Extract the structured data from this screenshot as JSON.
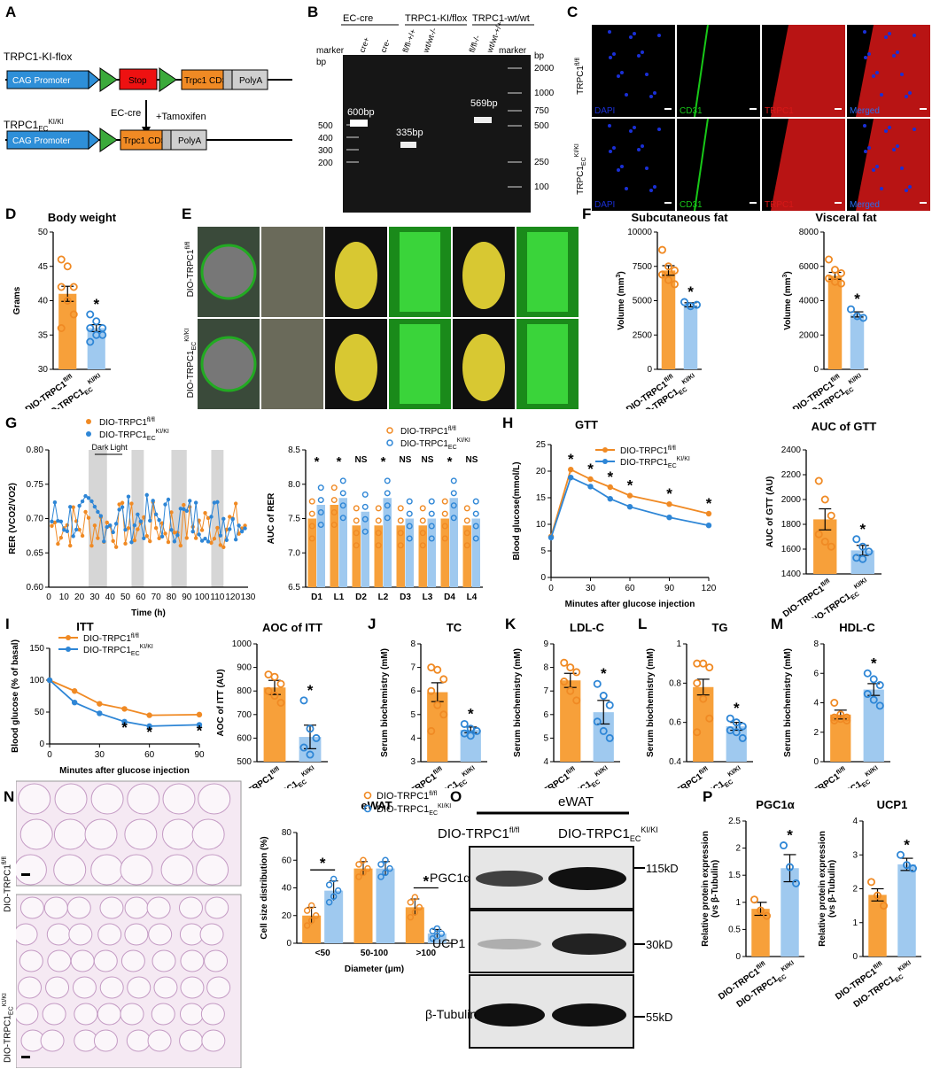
{
  "panels": {
    "A": {
      "label": "A",
      "construct1": "TRPC1-KI-flox",
      "construct2": "TRPC1EC",
      "construct2_sup": "KI/KI",
      "arrow1": "EC-cre",
      "arrow2": "+Tamoxifen",
      "elements1": [
        "CAG Promoter",
        "loxP",
        "Stop",
        "loxP",
        "Trpc1 CDS",
        "Myc",
        "PolyA"
      ],
      "elements2": [
        "CAG Promoter",
        "loxP",
        "Trpc1 CDS",
        "Myc",
        "PolyA"
      ]
    },
    "B": {
      "label": "B",
      "groups": [
        "EC-cre",
        "TRPC1-KI/flox",
        "TRPC1-wt/wt"
      ],
      "lanes": [
        "marker",
        "cre+",
        "cre-",
        "fl/fl-+/+",
        "wt/wt-/-",
        "fl/fl-/-",
        "wt/wt-+/+",
        "marker"
      ],
      "bp_left": [
        "bp",
        "500",
        "400",
        "300",
        "200"
      ],
      "bp_right": [
        "bp",
        "2000",
        "1000",
        "750",
        "500",
        "250",
        "100"
      ],
      "bands": [
        "600bp",
        "335bp",
        "569bp"
      ]
    },
    "C": {
      "label": "C",
      "rows": [
        "TRPC1fl/fl",
        "TRPC1EC KI/KI"
      ],
      "channels": [
        "DAPI",
        "CD31",
        "TRPC1",
        "Merged"
      ]
    },
    "D": {
      "label": "D",
      "title": "Body weight",
      "ylabel": "Grams"
    },
    "E": {
      "label": "E",
      "rows": [
        "DIO-TRPC1fl/fl",
        "DIO-TRPC1EC KI/KI"
      ]
    },
    "F": {
      "label": "F"
    },
    "G": {
      "label": "G",
      "ylabel": "RER (VCO2/VO2)",
      "xlabel": "Time (h)",
      "dark": "Dark",
      "light": "Light",
      "auc_ylabel": "AUC of RER"
    },
    "H": {
      "label": "H",
      "title": "GTT",
      "ylabel": "Blood glucose(mmol/L)",
      "xlabel": "Minutes after glucose injection",
      "auc_title": "AUC of GTT",
      "auc_ylabel": "AUC of GTT (AU)"
    },
    "I": {
      "label": "I",
      "title": "ITT",
      "ylabel": "Blood glucose (% of basal)",
      "xlabel": "Minutes after glucose injection",
      "auc_title": "AOC of ITT",
      "auc_ylabel": "AOC of ITT (AU)"
    },
    "J": {
      "label": "J",
      "title": "TC"
    },
    "K": {
      "label": "K",
      "title": "LDL-C"
    },
    "L": {
      "label": "L",
      "title": "TG"
    },
    "M": {
      "label": "M",
      "title": "HDL-C"
    },
    "N": {
      "label": "N",
      "rows": [
        "DIO-TRPC1fl/fl",
        "DIO-TRPC1EC KI/KI"
      ],
      "chart_title": "eWAT"
    },
    "O": {
      "label": "O",
      "header": "eWAT",
      "col1": "DIO-TRPC1fl/fl",
      "col2": "DIO-TRPC1EC KI/KI",
      "rows": [
        "PGC1α",
        "UCP1",
        "β-Tubulin"
      ],
      "sizes": [
        "115kD",
        "30kD",
        "55kD"
      ]
    },
    "P": {
      "label": "P",
      "ylabel": "Relative protein expression (vs β-Tubulin)"
    }
  },
  "groups": {
    "wt": "DIO-TRPC1",
    "wt_sup": "fl/fl",
    "ki": "DIO-TRPC1",
    "ki_sub": "EC",
    "ki_sup": "KI/KI"
  },
  "colors": {
    "wt": "#F7A03A",
    "ki": "#9FC9EF",
    "wt_dot": "#F08A24",
    "ki_dot": "#2E86D6"
  },
  "chart_data": [
    {
      "id": "D",
      "type": "bar",
      "title": "Body weight",
      "ylabel": "Grams",
      "ylim": [
        30,
        50
      ],
      "yticks": [
        30,
        35,
        40,
        45,
        50
      ],
      "values": [
        41.0,
        36.0
      ],
      "err": [
        1.1,
        0.5
      ],
      "sig": [
        1
      ],
      "points": [
        [
          46,
          45,
          42,
          42,
          40,
          38,
          36
        ],
        [
          38,
          37,
          36,
          36,
          35,
          35,
          34
        ]
      ]
    },
    {
      "id": "F1",
      "type": "bar",
      "title": "Subcutaneous fat",
      "ylabel": "Volume (mm3)",
      "ylim": [
        0,
        10000
      ],
      "yticks": [
        0,
        2500,
        5000,
        7500,
        10000
      ],
      "values": [
        7200,
        4700
      ],
      "err": [
        350,
        150
      ],
      "sig": [
        1
      ],
      "points": [
        [
          8700,
          7500,
          7200,
          6900,
          6500,
          6200
        ],
        [
          4900,
          4600,
          4700
        ]
      ]
    },
    {
      "id": "F2",
      "type": "bar",
      "title": "Visceral fat",
      "ylabel": "Volume (mm3)",
      "ylim": [
        0,
        8000
      ],
      "yticks": [
        0,
        2000,
        4000,
        6000,
        8000
      ],
      "values": [
        5450,
        3200
      ],
      "err": [
        200,
        150
      ],
      "sig": [
        1
      ],
      "points": [
        [
          6400,
          5800,
          5600,
          5300,
          5100,
          5000
        ],
        [
          3500,
          3100,
          3000
        ]
      ]
    },
    {
      "id": "Gb",
      "type": "bar",
      "ylabel": "AUC of RER",
      "ylim": [
        6.5,
        8.5
      ],
      "yticks": [
        6.5,
        7.0,
        7.5,
        8.0,
        8.5
      ],
      "categories": [
        "D1",
        "L1",
        "D2",
        "L2",
        "D3",
        "L3",
        "D4",
        "L4"
      ],
      "series": [
        {
          "name": "DIO-TRPC1fl/fl",
          "values": [
            7.5,
            7.7,
            7.4,
            7.4,
            7.4,
            7.4,
            7.5,
            7.4
          ]
        },
        {
          "name": "DIO-TRPC1EC KI/KI",
          "values": [
            7.7,
            7.8,
            7.6,
            7.8,
            7.5,
            7.5,
            7.8,
            7.5
          ]
        }
      ],
      "marks": [
        "*",
        "*",
        "NS",
        "*",
        "NS",
        "NS",
        "*",
        "NS"
      ]
    },
    {
      "id": "H",
      "type": "line",
      "title": "GTT",
      "ylabel": "Blood glucose(mmol/L)",
      "xlabel": "Minutes after glucose injection",
      "x": [
        0,
        15,
        30,
        45,
        60,
        90,
        120
      ],
      "xlim": [
        0,
        120
      ],
      "ylim": [
        0,
        25
      ],
      "yticks": [
        0,
        5,
        10,
        15,
        20,
        25
      ],
      "series": [
        {
          "name": "DIO-TRPC1fl/fl",
          "values": [
            7.7,
            20.3,
            18.5,
            17.0,
            15.4,
            13.8,
            12.0
          ]
        },
        {
          "name": "DIO-TRPC1EC KI/KI",
          "values": [
            7.5,
            18.8,
            17.1,
            14.8,
            13.3,
            11.3,
            9.8
          ]
        }
      ],
      "sig_x": [
        15,
        30,
        45,
        60,
        90,
        120
      ]
    },
    {
      "id": "Hb",
      "type": "bar",
      "title": "AUC of GTT",
      "ylabel": "AUC of GTT (AU)",
      "ylim": [
        1400,
        2400
      ],
      "yticks": [
        1400,
        1600,
        1800,
        2000,
        2200,
        2400
      ],
      "values": [
        1840,
        1590
      ],
      "err": [
        85,
        40
      ],
      "sig": [
        1
      ],
      "points": [
        [
          2150,
          2000,
          1870,
          1720,
          1660,
          1620
        ],
        [
          1680,
          1620,
          1580,
          1530,
          1520
        ]
      ]
    },
    {
      "id": "I",
      "type": "line",
      "title": "ITT",
      "ylabel": "Blood glucose (% of basal)",
      "xlabel": "Minutes after glucose injection",
      "x": [
        0,
        15,
        30,
        45,
        60,
        90
      ],
      "xlim": [
        0,
        90
      ],
      "ylim": [
        0,
        150
      ],
      "yticks": [
        0,
        50,
        100,
        150
      ],
      "series": [
        {
          "name": "DIO-TRPC1fl/fl",
          "values": [
            100,
            83,
            63,
            55,
            45,
            46
          ]
        },
        {
          "name": "DIO-TRPC1EC KI/KI",
          "values": [
            100,
            65,
            48,
            35,
            28,
            30
          ]
        }
      ],
      "sig_x": [
        45,
        60,
        90
      ]
    },
    {
      "id": "Ib",
      "type": "bar",
      "title": "AOC of ITT",
      "ylabel": "AOC of ITT (AU)",
      "ylim": [
        500,
        1000
      ],
      "yticks": [
        500,
        600,
        700,
        800,
        900,
        1000
      ],
      "values": [
        815,
        605
      ],
      "err": [
        30,
        50
      ],
      "sig": [
        1
      ],
      "points": [
        [
          870,
          860,
          830,
          800,
          780,
          750
        ],
        [
          760,
          640,
          600,
          560,
          530
        ]
      ]
    },
    {
      "id": "J",
      "type": "bar",
      "title": "TC",
      "ylabel": "Serum biochemistry (mM)",
      "ylim": [
        3,
        8
      ],
      "yticks": [
        3,
        4,
        5,
        6,
        7,
        8
      ],
      "values": [
        5.95,
        4.35
      ],
      "err": [
        0.4,
        0.12
      ],
      "sig": [
        1
      ],
      "points": [
        [
          7.0,
          6.9,
          6.5,
          6.0,
          5.4,
          5.0,
          4.3
        ],
        [
          4.6,
          4.4,
          4.3,
          4.2,
          4.1
        ]
      ]
    },
    {
      "id": "K",
      "type": "bar",
      "title": "LDL-C",
      "ylabel": "Serum biochemistry (mM)",
      "ylim": [
        4,
        9
      ],
      "yticks": [
        4,
        5,
        6,
        7,
        8,
        9
      ],
      "values": [
        7.45,
        6.1
      ],
      "err": [
        0.3,
        0.5
      ],
      "sig": [
        1
      ],
      "points": [
        [
          8.2,
          8.0,
          7.8,
          7.4,
          7.0,
          6.6
        ],
        [
          7.3,
          6.8,
          6.4,
          5.7,
          5.3,
          5.0
        ]
      ]
    },
    {
      "id": "L",
      "type": "bar",
      "title": "TG",
      "ylabel": "Serum biochemistry (mM)",
      "ylim": [
        0.4,
        1.0
      ],
      "yticks": [
        0.4,
        0.6,
        0.8,
        1.0
      ],
      "values": [
        0.78,
        0.58
      ],
      "err": [
        0.04,
        0.02
      ],
      "sig": [
        1
      ],
      "points": [
        [
          0.9,
          0.9,
          0.88,
          0.8,
          0.72,
          0.62,
          0.55
        ],
        [
          0.62,
          0.6,
          0.58,
          0.56,
          0.55,
          0.52
        ]
      ]
    },
    {
      "id": "M",
      "type": "bar",
      "title": "HDL-C",
      "ylabel": "Serum biochemistry (mM)",
      "ylim": [
        0,
        8
      ],
      "yticks": [
        0,
        2,
        4,
        6,
        8
      ],
      "values": [
        3.2,
        4.9
      ],
      "err": [
        0.3,
        0.4
      ],
      "sig": [
        1
      ],
      "points": [
        [
          4.0,
          3.2,
          3.0,
          3.0,
          2.9,
          2.8,
          2.8
        ],
        [
          6.0,
          5.6,
          5.2,
          4.6,
          4.2,
          3.8
        ]
      ]
    },
    {
      "id": "Nb",
      "type": "bar",
      "title": "eWAT",
      "ylabel": "Cell size distribution (%)",
      "xlabel": "Diameter (μm)",
      "ylim": [
        0,
        80
      ],
      "yticks": [
        0,
        20,
        40,
        60,
        80
      ],
      "categories": [
        "<50",
        "50-100",
        ">100"
      ],
      "series": [
        {
          "name": "DIO-TRPC1fl/fl",
          "values": [
            20,
            54,
            26
          ]
        },
        {
          "name": "DIO-TRPC1EC KI/KI",
          "values": [
            38,
            54,
            7
          ]
        }
      ],
      "err": [
        [
          6,
          5,
          6
        ],
        [
          7,
          5,
          3
        ]
      ],
      "sig_groups": [
        0,
        2
      ]
    },
    {
      "id": "P1",
      "type": "bar",
      "title": "PGC1α",
      "ylabel": "Relative protein expression (vs β-Tubulin)",
      "ylim": [
        0,
        2.5
      ],
      "yticks": [
        0,
        0.5,
        1.0,
        1.5,
        2.0,
        2.5
      ],
      "values": [
        0.88,
        1.63
      ],
      "err": [
        0.12,
        0.25
      ],
      "sig": [
        1
      ],
      "points": [
        [
          1.05,
          0.85,
          0.75
        ],
        [
          2.05,
          1.65,
          1.35
        ]
      ]
    },
    {
      "id": "P2",
      "type": "bar",
      "title": "UCP1",
      "ylabel": "Relative protein expression (vs β-Tubulin)",
      "ylim": [
        0,
        4
      ],
      "yticks": [
        0,
        1,
        2,
        3,
        4
      ],
      "values": [
        1.82,
        2.72
      ],
      "err": [
        0.18,
        0.18
      ],
      "sig": [
        1
      ],
      "points": [
        [
          2.2,
          1.8,
          1.5
        ],
        [
          3.0,
          2.7,
          2.6
        ]
      ]
    }
  ]
}
